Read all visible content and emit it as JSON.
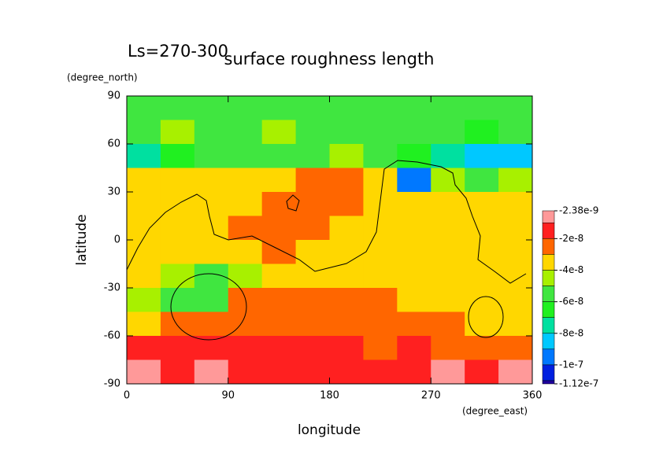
{
  "chart_data": {
    "type": "contour",
    "title": "surface roughness length",
    "subtitle": "Ls=270-300",
    "x_label": "longitude",
    "x_unit": "(degree_east)",
    "y_label": "latitude",
    "y_unit": "(degree_north)",
    "xlim": [
      0,
      360
    ],
    "xticks": [
      0,
      90,
      180,
      270,
      360
    ],
    "ylim": [
      -90,
      90
    ],
    "yticks": [
      -90,
      -60,
      -30,
      0,
      30,
      60,
      90
    ],
    "x": [
      15,
      45,
      75,
      105,
      135,
      165,
      195,
      225,
      255,
      285,
      315,
      345
    ],
    "y": [
      82.5,
      67.5,
      52.5,
      37.5,
      22.5,
      7.5,
      -7.5,
      -22.5,
      -37.5,
      -52.5,
      -67.5,
      -82.5
    ],
    "z": [
      [
        -5.5e-08,
        -5.5e-08,
        -5.5e-08,
        -5.5e-08,
        -5.5e-08,
        -5.5e-08,
        -5.5e-08,
        -5.5e-08,
        -5.5e-08,
        -5.5e-08,
        -5.5e-08,
        -5.5e-08
      ],
      [
        -5.5e-08,
        -4.5e-08,
        -5.5e-08,
        -5.5e-08,
        -4.5e-08,
        -5.5e-08,
        -5.5e-08,
        -5.5e-08,
        -5.5e-08,
        -5.5e-08,
        -6.5e-08,
        -5.5e-08
      ],
      [
        -7.5e-08,
        -6.5e-08,
        -5.5e-08,
        -5.5e-08,
        -5.5e-08,
        -5.5e-08,
        -4.5e-08,
        -5.5e-08,
        -6.5e-08,
        -7.5e-08,
        -8.5e-08,
        -8.5e-08
      ],
      [
        -3.5e-08,
        -3.5e-08,
        -3.5e-08,
        -3.5e-08,
        -3.5e-08,
        -2.5e-08,
        -2.5e-08,
        -3.5e-08,
        -9.5e-08,
        -4.5e-08,
        -5.5e-08,
        -4.5e-08
      ],
      [
        -3.5e-08,
        -3.5e-08,
        -3.5e-08,
        -3.5e-08,
        -2.5e-08,
        -2.5e-08,
        -2.5e-08,
        -3.5e-08,
        -3.5e-08,
        -3.5e-08,
        -3.5e-08,
        -3.5e-08
      ],
      [
        -3.5e-08,
        -3.5e-08,
        -3.5e-08,
        -2.5e-08,
        -2.5e-08,
        -2.5e-08,
        -3.5e-08,
        -3.5e-08,
        -3.5e-08,
        -3.5e-08,
        -3.5e-08,
        -3.5e-08
      ],
      [
        -3.5e-08,
        -3.5e-08,
        -3.5e-08,
        -3.5e-08,
        -2.5e-08,
        -3.5e-08,
        -3.5e-08,
        -3.5e-08,
        -3.5e-08,
        -3.5e-08,
        -3.5e-08,
        -3.5e-08
      ],
      [
        -3.5e-08,
        -4.5e-08,
        -5.5e-08,
        -4.5e-08,
        -3.5e-08,
        -3.5e-08,
        -3.5e-08,
        -3.5e-08,
        -3.5e-08,
        -3.5e-08,
        -3.5e-08,
        -3.5e-08
      ],
      [
        -4.5e-08,
        -5.5e-08,
        -5.5e-08,
        -2.5e-08,
        -2.5e-08,
        -2.5e-08,
        -2.5e-08,
        -2.5e-08,
        -3.5e-08,
        -3.5e-08,
        -3.5e-08,
        -3.5e-08
      ],
      [
        -3.5e-08,
        -2.5e-08,
        -2.5e-08,
        -2.5e-08,
        -2.5e-08,
        -2.5e-08,
        -2.5e-08,
        -2.5e-08,
        -2.5e-08,
        -2.5e-08,
        -3.5e-08,
        -3.5e-08
      ],
      [
        -1.5e-08,
        -1.5e-08,
        -1.5e-08,
        -1.5e-08,
        -1.5e-08,
        -1.5e-08,
        -1.5e-08,
        -2.5e-08,
        -1.5e-08,
        -2.5e-08,
        -2.5e-08,
        -2.5e-08
      ],
      [
        -5e-09,
        -1.5e-08,
        -5e-09,
        -1.5e-08,
        -1.5e-08,
        -1.5e-08,
        -1.5e-08,
        -1.5e-08,
        -1.5e-08,
        -5e-09,
        -1.5e-08,
        -5e-09
      ]
    ],
    "levels": [
      -2.38e-09,
      -1e-08,
      -2e-08,
      -3e-08,
      -4e-08,
      -5e-08,
      -6e-08,
      -7e-08,
      -8e-08,
      -9e-08,
      -1e-07,
      -1.1e-07,
      -1.12e-07
    ],
    "colors": [
      "#ff9999",
      "#ff2020",
      "#ff6600",
      "#ffd700",
      "#a8f000",
      "#40e640",
      "#20f020",
      "#00e0a0",
      "#00c8ff",
      "#0078ff",
      "#0020e0",
      "#2000a0"
    ],
    "colorbar_ticks": [
      {
        "value": -2.38e-09,
        "label": "-2.38e-9"
      },
      {
        "value": -2e-08,
        "label": "-2e-8"
      },
      {
        "value": -4e-08,
        "label": "-4e-8"
      },
      {
        "value": -6e-08,
        "label": "-6e-8"
      },
      {
        "value": -8e-08,
        "label": "-8e-8"
      },
      {
        "value": -1e-07,
        "label": "-1e-7"
      },
      {
        "value": -1.12e-07,
        "label": "-1.12e-7"
      }
    ]
  }
}
